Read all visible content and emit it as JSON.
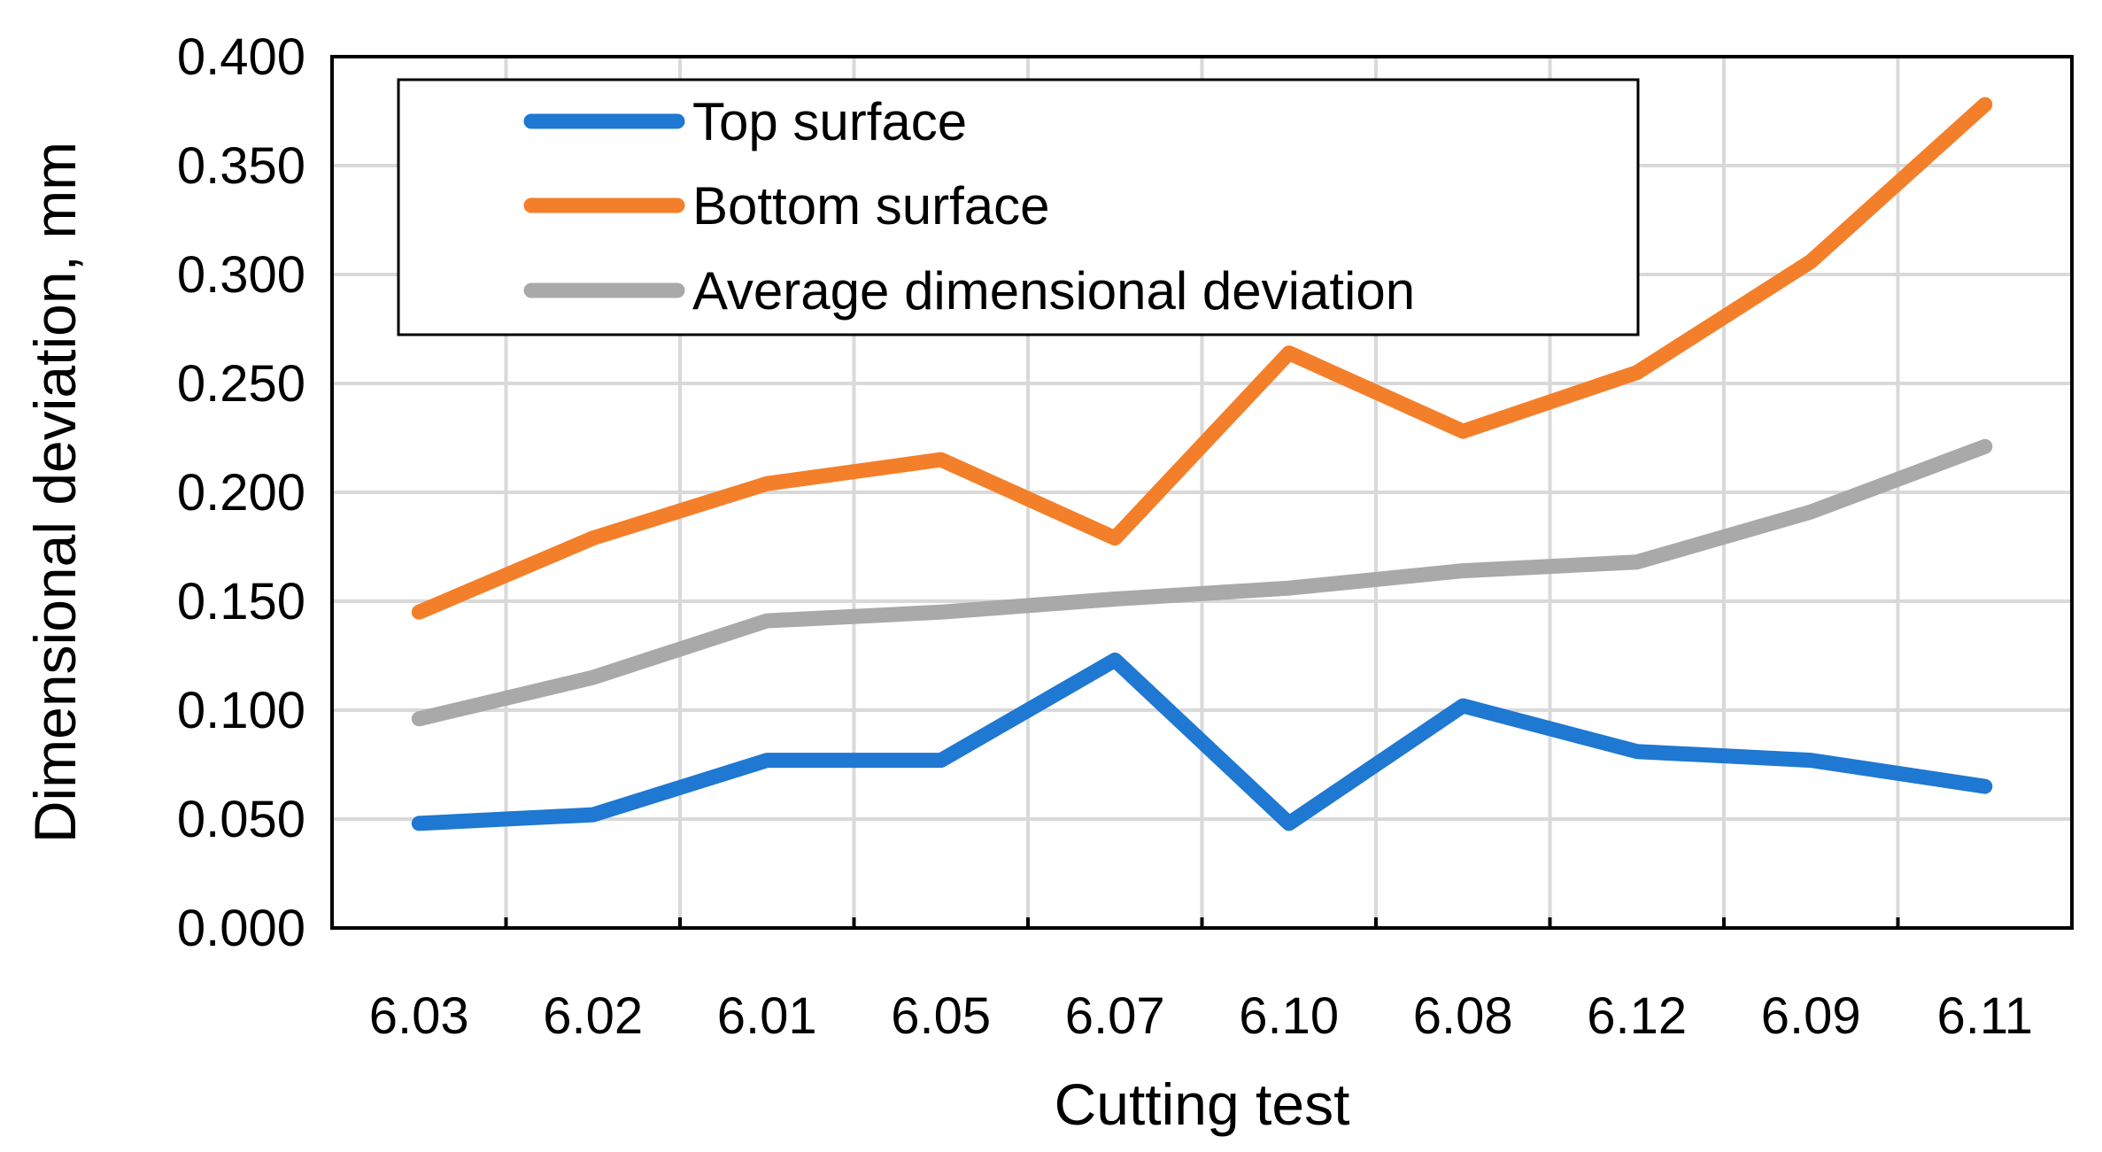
{
  "chart_data": {
    "type": "line",
    "title": "",
    "xlabel": "Cutting test",
    "ylabel": "Dimensional deviation, mm",
    "categories": [
      "6.03",
      "6.02",
      "6.01",
      "6.05",
      "6.07",
      "6.10",
      "6.08",
      "6.12",
      "6.09",
      "6.11"
    ],
    "ylim": [
      0,
      0.4
    ],
    "yticks": [
      "0.000",
      "0.050",
      "0.100",
      "0.150",
      "0.200",
      "0.250",
      "0.300",
      "0.350",
      "0.400"
    ],
    "grid": true,
    "legend_position": "top-left",
    "series": [
      {
        "name": "Top surface",
        "color": "#1f78d1",
        "values": [
          0.048,
          0.052,
          0.077,
          0.077,
          0.123,
          0.048,
          0.102,
          0.081,
          0.077,
          0.065
        ]
      },
      {
        "name": "Bottom surface",
        "color": "#f47f2a",
        "values": [
          0.145,
          0.179,
          0.204,
          0.215,
          0.179,
          0.264,
          0.228,
          0.255,
          0.306,
          0.378
        ]
      },
      {
        "name": "Average dimensional deviation",
        "color": "#a9a9a9",
        "values": [
          0.096,
          0.115,
          0.141,
          0.145,
          0.151,
          0.156,
          0.164,
          0.168,
          0.191,
          0.221
        ]
      }
    ]
  }
}
